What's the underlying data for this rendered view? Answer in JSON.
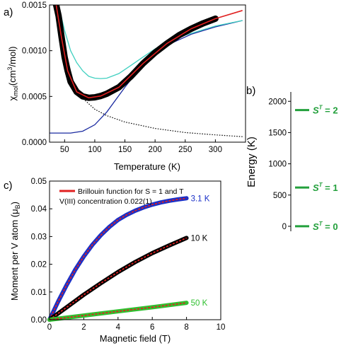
{
  "chart_data": [
    {
      "panel": "a)",
      "type": "line",
      "xlabel": "Temperature (K)",
      "ylabel": "χmol (cm³/mol)",
      "xlim": [
        25,
        350
      ],
      "ylim": [
        0,
        0.0015
      ],
      "xticks": [
        "50",
        "100",
        "150",
        "200",
        "250",
        "300"
      ],
      "yticks": [
        "0.0000",
        "0.0005",
        "0.0010",
        "0.0015"
      ],
      "series": [
        {
          "role": "measured",
          "color": "#000000",
          "x": [
            36,
            40,
            45,
            50,
            55,
            60,
            70,
            80,
            90,
            100,
            110,
            120,
            140,
            160,
            180,
            200,
            220,
            240,
            260,
            280,
            300
          ],
          "y": [
            0.0015,
            0.00138,
            0.00115,
            0.00093,
            0.00078,
            0.00066,
            0.00055,
            0.0005,
            0.000485,
            0.00049,
            0.000505,
            0.00053,
            0.0006,
            0.00072,
            0.00086,
            0.00098,
            0.00108,
            0.00117,
            0.00124,
            0.0013,
            0.00135
          ]
        },
        {
          "role": "fit",
          "color": "#e02020",
          "x": [
            36,
            45,
            55,
            70,
            90,
            110,
            140,
            180,
            220,
            260,
            300,
            345
          ],
          "y": [
            0.0015,
            0.00114,
            0.00078,
            0.00055,
            0.000485,
            0.000505,
            0.0006,
            0.00086,
            0.00108,
            0.00124,
            0.00135,
            0.00144
          ]
        },
        {
          "role": "cyan",
          "color": "#40d0c0",
          "x": [
            40,
            50,
            60,
            70,
            80,
            90,
            100,
            110,
            120,
            140,
            160,
            180,
            200,
            220,
            250,
            300,
            345
          ],
          "y": [
            0.0015,
            0.00122,
            0.001,
            0.00087,
            0.00078,
            0.00072,
            0.0007,
            0.000695,
            0.0007,
            0.00075,
            0.00084,
            0.00093,
            0.00102,
            0.00109,
            0.00117,
            0.00127,
            0.00133
          ]
        },
        {
          "role": "blue",
          "color": "#1a2aa0",
          "x": [
            25,
            60,
            80,
            100,
            120,
            150,
            180,
            200,
            230,
            260,
            300,
            345
          ],
          "y": [
            0.0001,
            0.0001,
            0.00012,
            0.00019,
            0.00033,
            0.0006,
            0.00085,
            0.00097,
            0.00109,
            0.00118,
            0.00126,
            0.00133
          ]
        },
        {
          "role": "dotted",
          "color": "#000000",
          "x": [
            36,
            40,
            45,
            50,
            60,
            70,
            80,
            100,
            120,
            150,
            200,
            250,
            300,
            345
          ],
          "y": [
            0.0015,
            0.0013,
            0.00108,
            0.00092,
            0.00071,
            0.00058,
            0.00048,
            0.00036,
            0.00029,
            0.00022,
            0.00015,
            0.000105,
            8e-05,
            6e-05
          ]
        }
      ]
    },
    {
      "panel": "b)",
      "type": "scatter",
      "ylabel": "Energy (K)",
      "ylim": [
        -80,
        2150
      ],
      "yticks": [
        "0",
        "500",
        "1000",
        "1500",
        "2000"
      ],
      "levels": [
        {
          "energy": 0,
          "label": "S",
          "sup": "T",
          "value": " = 0"
        },
        {
          "energy": 620,
          "label": "S",
          "sup": "T",
          "value": " = 1"
        },
        {
          "energy": 1860,
          "label": "S",
          "sup": "T",
          "value": " = 2"
        }
      ],
      "color": "#23a03c"
    },
    {
      "panel": "c)",
      "type": "line",
      "xlabel": "Magnetic field (T)",
      "ylabel": "Moment per V atom (μB)",
      "xlim": [
        0,
        10
      ],
      "ylim": [
        0,
        0.05
      ],
      "xticks": [
        "0",
        "2",
        "4",
        "6",
        "8",
        "10"
      ],
      "yticks": [
        "0.00",
        "0.01",
        "0.02",
        "0.03",
        "0.04",
        "0.05"
      ],
      "legend": {
        "line1": "Brillouin function for S = 1 and T",
        "line2": "V(III) concentration 0.022(1)",
        "color": "#e02020"
      },
      "series": [
        {
          "name": "3.1 K",
          "color": "#1a30c8",
          "x": [
            0,
            0.5,
            1,
            1.5,
            2,
            2.5,
            3,
            3.5,
            4,
            4.5,
            5,
            5.5,
            6,
            6.5,
            7,
            7.5,
            8
          ],
          "y": [
            0,
            0.0065,
            0.0125,
            0.018,
            0.0228,
            0.027,
            0.0305,
            0.0335,
            0.036,
            0.0378,
            0.0393,
            0.0405,
            0.0415,
            0.0423,
            0.0429,
            0.0434,
            0.0438
          ]
        },
        {
          "name": "10 K",
          "color": "#000000",
          "x": [
            0,
            1,
            2,
            3,
            4,
            5,
            6,
            7,
            8
          ],
          "y": [
            0,
            0.0045,
            0.009,
            0.0132,
            0.0172,
            0.0208,
            0.024,
            0.0268,
            0.0295
          ]
        },
        {
          "name": "50 K",
          "color": "#30c030",
          "x": [
            0,
            2,
            4,
            6,
            8
          ],
          "y": [
            0,
            0.0015,
            0.003,
            0.0045,
            0.0061
          ]
        }
      ]
    }
  ]
}
